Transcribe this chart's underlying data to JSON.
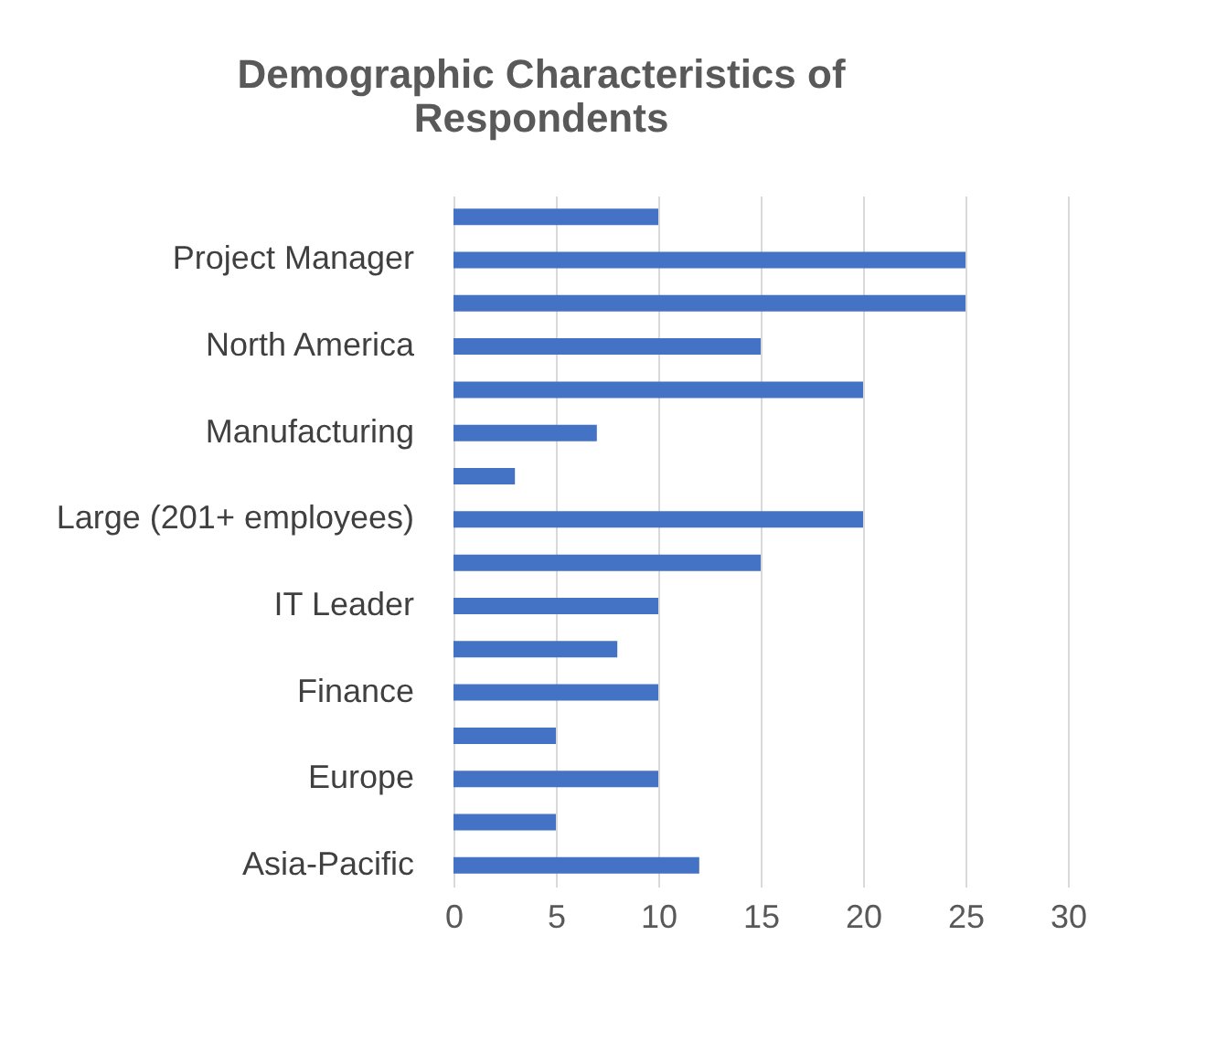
{
  "chart_data": {
    "type": "bar",
    "orientation": "horizontal",
    "title": "Demographic Characteristics of Respondents",
    "categories": [
      null,
      "Project Manager",
      null,
      "North America",
      null,
      "Manufacturing",
      null,
      "Large (201+ employees)",
      null,
      "IT Leader",
      null,
      "Finance",
      null,
      "Europe",
      null,
      "Asia-Pacific"
    ],
    "values": [
      10,
      25,
      25,
      15,
      20,
      7,
      3,
      20,
      15,
      10,
      8,
      10,
      5,
      10,
      5,
      12
    ],
    "color": "#4472c4",
    "xlim": [
      0,
      30
    ],
    "xticks": [
      0,
      5,
      10,
      15,
      20,
      25,
      30
    ],
    "grid": "x"
  }
}
